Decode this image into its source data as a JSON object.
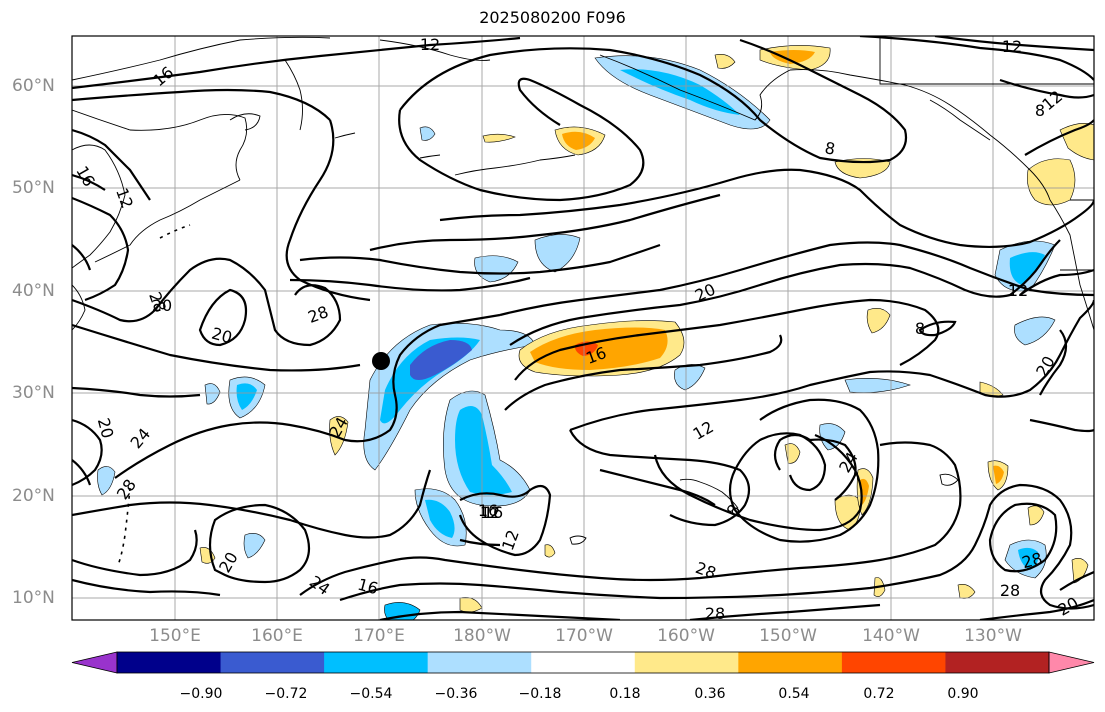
{
  "title": "2025080200 F096",
  "map": {
    "lat_labels": [
      "60°N",
      "50°N",
      "40°N",
      "30°N",
      "20°N",
      "10°N"
    ],
    "lon_labels": [
      "150°E",
      "160°E",
      "170°E",
      "180°W",
      "170°W",
      "160°W",
      "150°W",
      "140°W",
      "130°W"
    ],
    "contour_labels": [
      "12",
      "16",
      "12",
      "8",
      "12",
      "12",
      "16",
      "12",
      "28",
      "20",
      "28",
      "20",
      "16",
      "20",
      "24",
      "28",
      "24",
      "20",
      "24",
      "16",
      "12",
      "16",
      "12",
      "8",
      "20",
      "28",
      "24",
      "28",
      "20",
      "8",
      "28",
      "20",
      "8",
      "12",
      "28",
      "16"
    ],
    "marker": "black-dot"
  },
  "colorbar": {
    "ticks": [
      "−0.90",
      "−0.72",
      "−0.54",
      "−0.36",
      "−0.18",
      "0.18",
      "0.36",
      "0.54",
      "0.72",
      "0.90"
    ],
    "colors": [
      "#9933cc",
      "#00008b",
      "#3a5bd0",
      "#00bfff",
      "#addfff",
      "#ffffff",
      "#ffe98a",
      "#ffa500",
      "#ff4500",
      "#b22222",
      "#ff88aa"
    ]
  }
}
